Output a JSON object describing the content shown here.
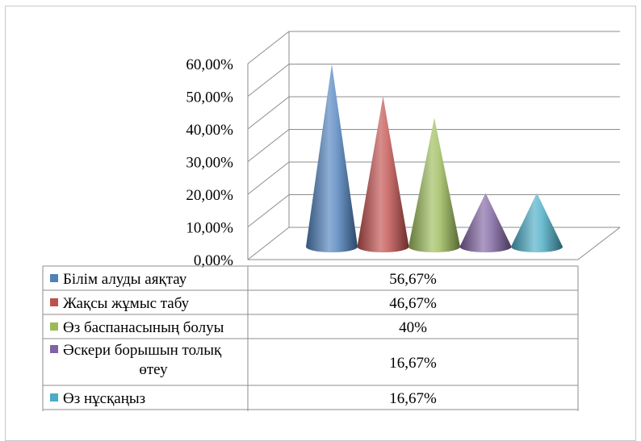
{
  "chart_data": {
    "type": "bar",
    "subtype": "3d-cone",
    "categories": [
      "Білім алуды аяқтау",
      "Жақсы жұмыс табу",
      "Өз баспанасының болуы",
      "Әскери борышын толық өтеу",
      "Өз нұсқаңыз"
    ],
    "values": [
      56.67,
      46.67,
      40,
      16.67,
      16.67
    ],
    "data_labels": [
      "56,67%",
      "46,67%",
      "40%",
      "16,67%",
      "16,67%"
    ],
    "category_label_lines": [
      [
        "Білім алуды аяқтау"
      ],
      [
        "Жақсы жұмыс табу"
      ],
      [
        "Өз баспанасының болуы"
      ],
      [
        "Әскери борышын толық",
        "өтеу"
      ],
      [
        "Өз нұсқаңыз"
      ]
    ],
    "colors": [
      "#4f81bd",
      "#c0504d",
      "#9bbb59",
      "#8064a2",
      "#4bacc6"
    ],
    "yticks": [
      "0,00%",
      "10,00%",
      "20,00%",
      "30,00%",
      "40,00%",
      "50,00%",
      "60,00%"
    ],
    "ylim": [
      0,
      60
    ],
    "grid": true,
    "legend": "data-table",
    "title": "",
    "xlabel": "",
    "ylabel": ""
  }
}
